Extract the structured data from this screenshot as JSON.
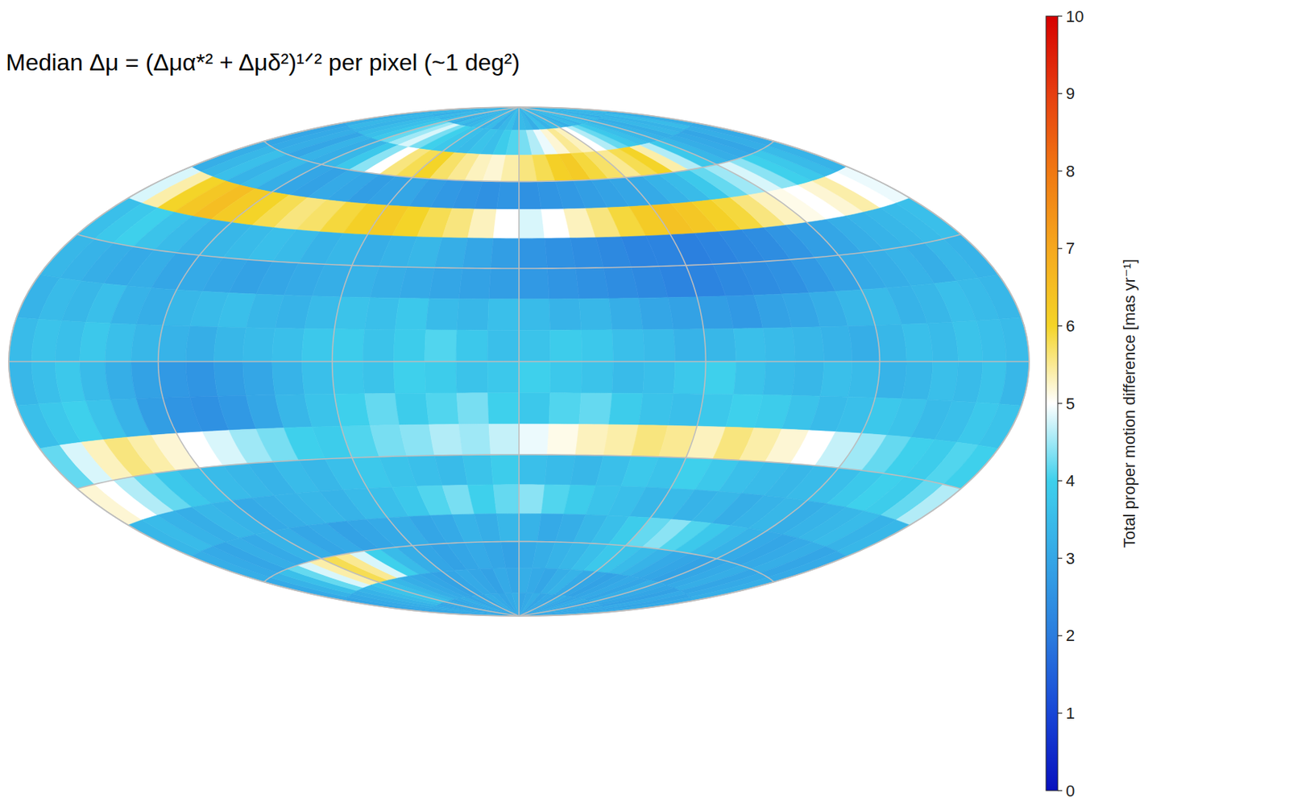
{
  "chart_data": {
    "type": "heatmap",
    "title": "Median Δμ = (Δμα*² + Δμδ²)¹ᐟ² per pixel (~1 deg²)",
    "xlim": [
      -180,
      180
    ],
    "ylim": [
      -90,
      90
    ],
    "xticks": [
      -180,
      -120,
      -60,
      0,
      60,
      120,
      180
    ],
    "yticks": [
      -60,
      -30,
      0,
      30,
      60
    ],
    "grid": true,
    "tick_labels": false,
    "x": [
      -175,
      -165,
      -155,
      -145,
      -135,
      -125,
      -115,
      -105,
      -95,
      -85,
      -75,
      -65,
      -55,
      -45,
      -35,
      -25,
      -15,
      -5,
      5,
      15,
      25,
      35,
      45,
      55,
      65,
      75,
      85,
      95,
      105,
      115,
      125,
      135,
      145,
      155,
      165,
      175
    ],
    "y": [
      85,
      75,
      65,
      55,
      45,
      35,
      25,
      15,
      5,
      -5,
      -15,
      -25,
      -35,
      -45,
      -55,
      -65,
      -75,
      -85
    ],
    "cells": [
      [
        3.3,
        3.4,
        3.2,
        3.5,
        3.3,
        3.6,
        3.4,
        3.2,
        3.5,
        3.3,
        3.4,
        3.6,
        3.3,
        3.5,
        3.2,
        3.4,
        3.6,
        3.3,
        3.5,
        3.4,
        3.2,
        3.6,
        3.3,
        3.5,
        3.4,
        3.2,
        3.5,
        3.3,
        3.6,
        3.4,
        3.3,
        3.5,
        3.2,
        3.4,
        3.3,
        3.5
      ],
      [
        3.2,
        3.4,
        3.3,
        3.5,
        3.6,
        3.8,
        4.2,
        4.5,
        4.8,
        4.3,
        4.0,
        3.8,
        3.6,
        3.5,
        3.7,
        3.6,
        3.9,
        4.1,
        4.3,
        4.6,
        4.9,
        5.2,
        5.5,
        5.3,
        5.0,
        4.6,
        4.2,
        3.8,
        3.6,
        3.4,
        3.3,
        3.2,
        3.4,
        3.3,
        3.5,
        3.2
      ],
      [
        3.0,
        3.1,
        3.2,
        3.0,
        3.3,
        3.2,
        3.4,
        3.8,
        4.4,
        5.0,
        5.6,
        5.8,
        6.0,
        5.7,
        5.5,
        5.3,
        5.2,
        5.4,
        5.6,
        5.8,
        6.1,
        6.2,
        5.9,
        5.7,
        5.5,
        5.8,
        6.0,
        5.4,
        4.6,
        3.8,
        3.4,
        3.2,
        3.1,
        3.0,
        3.2,
        3.1
      ],
      [
        3.2,
        3.4,
        3.6,
        3.3,
        3.5,
        3.2,
        3.0,
        2.9,
        3.1,
        3.0,
        2.8,
        2.9,
        3.0,
        2.8,
        2.7,
        2.6,
        2.5,
        2.6,
        2.5,
        2.6,
        2.7,
        2.8,
        2.9,
        3.0,
        3.1,
        3.3,
        3.5,
        3.8,
        4.2,
        4.5,
        4.8,
        4.4,
        4.0,
        3.8,
        3.5,
        3.3
      ],
      [
        4.8,
        5.4,
        6.0,
        6.3,
        6.5,
        6.2,
        6.0,
        5.8,
        5.6,
        5.7,
        5.9,
        6.1,
        6.2,
        6.0,
        5.8,
        5.6,
        5.3,
        5.0,
        4.8,
        5.0,
        5.3,
        5.6,
        5.9,
        6.2,
        6.4,
        6.3,
        6.1,
        5.9,
        5.6,
        5.3,
        5.1,
        5.0,
        5.2,
        5.4,
        5.0,
        4.9
      ],
      [
        3.6,
        3.8,
        4.0,
        3.7,
        3.5,
        3.3,
        3.4,
        3.5,
        3.6,
        3.5,
        3.3,
        3.4,
        3.2,
        3.3,
        3.4,
        3.2,
        3.0,
        2.8,
        2.6,
        2.5,
        2.4,
        2.3,
        2.2,
        2.2,
        2.1,
        2.2,
        2.3,
        2.4,
        2.6,
        2.8,
        3.0,
        3.2,
        3.3,
        3.4,
        3.5,
        3.6
      ],
      [
        3.4,
        3.3,
        3.2,
        3.1,
        3.2,
        3.0,
        3.1,
        3.0,
        2.9,
        3.0,
        3.1,
        3.2,
        3.3,
        3.2,
        3.1,
        3.0,
        2.9,
        2.8,
        2.7,
        2.6,
        2.5,
        2.4,
        2.3,
        2.2,
        2.2,
        2.3,
        2.4,
        2.5,
        2.7,
        2.9,
        3.1,
        3.2,
        3.3,
        3.2,
        3.4,
        3.3
      ],
      [
        3.3,
        3.5,
        3.4,
        3.6,
        3.3,
        3.2,
        3.4,
        3.5,
        3.6,
        3.4,
        3.3,
        3.5,
        3.7,
        3.6,
        3.8,
        3.5,
        3.4,
        3.6,
        3.5,
        3.3,
        3.4,
        3.2,
        3.0,
        2.9,
        2.8,
        2.7,
        2.9,
        3.0,
        3.2,
        3.4,
        3.5,
        3.3,
        3.4,
        3.6,
        3.5,
        3.4
      ],
      [
        3.5,
        3.7,
        3.6,
        3.8,
        3.6,
        3.4,
        3.3,
        3.2,
        3.4,
        3.5,
        3.6,
        3.8,
        3.9,
        3.7,
        3.9,
        4.1,
        3.8,
        3.6,
        3.7,
        3.9,
        3.8,
        3.6,
        3.5,
        3.3,
        3.4,
        3.6,
        3.5,
        3.4,
        3.3,
        3.2,
        3.4,
        3.6,
        3.5,
        3.7,
        3.6,
        3.5
      ],
      [
        3.4,
        3.6,
        3.8,
        3.5,
        3.2,
        2.9,
        2.7,
        2.6,
        2.8,
        3.0,
        3.3,
        3.6,
        3.8,
        3.7,
        4.0,
        3.9,
        3.7,
        3.8,
        4.0,
        3.8,
        3.7,
        3.5,
        3.6,
        3.8,
        4.0,
        3.7,
        3.5,
        3.4,
        3.6,
        3.5,
        3.3,
        3.4,
        3.6,
        3.5,
        3.7,
        3.4
      ],
      [
        3.6,
        3.8,
        4.0,
        3.7,
        3.3,
        2.8,
        2.6,
        2.5,
        2.7,
        3.0,
        3.4,
        3.7,
        4.0,
        4.2,
        3.9,
        4.1,
        4.3,
        4.0,
        3.8,
        4.1,
        4.2,
        3.9,
        3.7,
        3.6,
        3.8,
        4.0,
        3.9,
        3.7,
        3.5,
        3.6,
        3.8,
        3.7,
        3.5,
        3.6,
        3.8,
        3.7
      ],
      [
        4.2,
        4.8,
        5.3,
        5.6,
        5.4,
        5.2,
        5.0,
        4.8,
        4.5,
        4.3,
        4.0,
        3.9,
        4.1,
        4.3,
        4.4,
        4.6,
        4.5,
        4.7,
        4.9,
        5.1,
        5.3,
        5.4,
        5.6,
        5.5,
        5.3,
        5.6,
        5.4,
        5.2,
        5.0,
        4.7,
        4.5,
        4.2,
        4.0,
        3.9,
        4.1,
        4.0
      ],
      [
        5.2,
        5.0,
        4.6,
        4.2,
        3.8,
        3.6,
        3.5,
        3.4,
        3.3,
        3.5,
        3.4,
        3.6,
        3.8,
        3.7,
        3.6,
        3.5,
        3.7,
        3.9,
        3.6,
        3.5,
        3.4,
        3.6,
        3.8,
        3.7,
        4.0,
        3.8,
        3.6,
        3.5,
        3.4,
        3.5,
        3.6,
        3.8,
        4.0,
        3.9,
        4.2,
        4.6
      ],
      [
        3.4,
        3.5,
        3.3,
        3.2,
        3.4,
        3.3,
        3.1,
        3.2,
        3.3,
        3.4,
        3.3,
        3.5,
        3.6,
        3.8,
        4.1,
        4.3,
        4.0,
        4.2,
        4.4,
        4.1,
        3.9,
        3.7,
        3.6,
        3.4,
        3.5,
        3.3,
        3.4,
        3.2,
        3.3,
        3.4,
        3.2,
        3.3,
        3.4,
        3.5,
        3.3,
        3.4
      ],
      [
        3.2,
        3.1,
        3.0,
        3.2,
        3.1,
        3.3,
        3.2,
        3.0,
        3.1,
        2.9,
        3.0,
        3.1,
        3.2,
        3.0,
        3.1,
        3.3,
        3.2,
        3.4,
        3.3,
        3.1,
        3.2,
        3.4,
        3.6,
        3.9,
        4.2,
        4.4,
        4.1,
        3.8,
        3.5,
        3.3,
        3.1,
        3.0,
        3.1,
        3.2,
        3.0,
        3.1
      ],
      [
        3.1,
        3.3,
        3.6,
        4.2,
        4.8,
        5.4,
        5.8,
        5.5,
        4.8,
        4.0,
        3.5,
        3.2,
        3.0,
        2.9,
        3.0,
        3.1,
        3.0,
        2.9,
        3.1,
        3.2,
        3.3,
        3.4,
        3.6,
        3.8,
        3.7,
        3.5,
        3.3,
        3.1,
        3.0,
        2.9,
        3.0,
        3.1,
        3.2,
        3.0,
        3.1,
        3.2
      ],
      [
        3.0,
        3.1,
        3.2,
        3.3,
        3.5,
        3.7,
        3.6,
        3.4,
        3.2,
        3.1,
        3.0,
        2.9,
        3.0,
        3.1,
        3.0,
        2.9,
        3.1,
        3.0,
        3.2,
        3.1,
        3.0,
        3.2,
        3.3,
        3.1,
        3.0,
        2.9,
        3.0,
        3.1,
        3.0,
        3.2,
        3.1,
        3.0,
        2.9,
        3.1,
        3.0,
        3.1
      ],
      [
        3.1,
        3.0,
        3.2,
        3.1,
        3.0,
        3.1,
        3.2,
        3.0,
        3.1,
        3.2,
        3.0,
        3.1,
        3.0,
        3.2,
        3.1,
        3.0,
        3.1,
        3.2,
        3.0,
        3.1,
        3.2,
        3.0,
        3.1,
        3.0,
        3.2,
        3.1,
        3.0,
        3.1,
        3.2,
        3.0,
        3.1,
        3.2,
        3.0,
        3.1,
        3.0,
        3.2
      ]
    ],
    "colorbar": {
      "range": [
        0,
        10
      ],
      "ticks": [
        0,
        1,
        2,
        3,
        4,
        5,
        6,
        7,
        8,
        9,
        10
      ],
      "label": "Total proper motion difference [mas yr⁻¹]"
    }
  }
}
